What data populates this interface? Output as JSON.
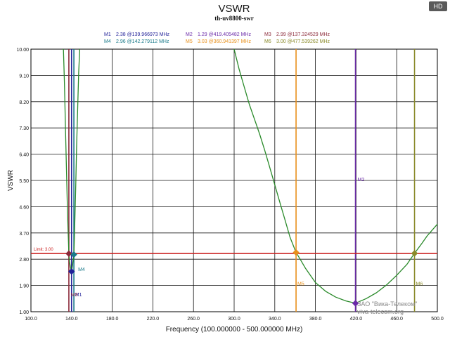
{
  "hd_badge": "HD",
  "watermark": {
    "company": "ЗАО \"Вика-Телеком\"",
    "site": "viva-telecom.org"
  },
  "chart_data": {
    "type": "line",
    "title": "VSWR",
    "subtitle": "th-uv8800-swr",
    "xlabel": "Frequency (100.000000 - 500.000000 MHz)",
    "ylabel": "VSWR",
    "xlim": [
      100,
      500
    ],
    "ylim": [
      1.0,
      10.0
    ],
    "x_ticks": [
      100,
      140,
      180,
      220,
      260,
      300,
      340,
      380,
      420,
      460,
      500
    ],
    "x_tick_labels": [
      "100.0",
      "140.0",
      "180.0",
      "220.0",
      "260.0",
      "300.0",
      "340.0",
      "380.0",
      "420.0",
      "460.0",
      "500.0"
    ],
    "y_ticks": [
      1.0,
      1.9,
      2.8,
      3.7,
      4.6,
      5.5,
      6.4,
      7.3,
      8.2,
      9.1,
      10.0
    ],
    "y_tick_labels": [
      "1.00",
      "1.90",
      "2.80",
      "3.70",
      "4.60",
      "5.50",
      "6.40",
      "7.30",
      "8.20",
      "9.10",
      "10.00"
    ],
    "grid": true,
    "limit": {
      "label": "Limit: 3.00",
      "value": 3.0,
      "color": "#cc2222"
    },
    "series": [
      {
        "name": "VSWR",
        "color": "#2a8a2a",
        "x": [
          132,
          133,
          134,
          135,
          136,
          137,
          137.3,
          138,
          139,
          139.97,
          141,
          142.28,
          143,
          144,
          145,
          146,
          147,
          148
        ],
        "y": [
          10.0,
          8.8,
          7.3,
          5.8,
          4.4,
          3.3,
          2.99,
          2.7,
          2.5,
          2.38,
          2.6,
          2.96,
          3.8,
          5.2,
          6.7,
          8.0,
          9.2,
          10.0
        ]
      },
      {
        "name": "VSWR",
        "color": "#2a8a2a",
        "x": [
          300,
          305,
          310,
          315,
          320,
          325,
          330,
          335,
          340,
          345,
          350,
          355,
          360.94,
          365,
          370,
          375,
          380,
          390,
          400,
          410,
          419.41,
          430,
          440,
          450,
          460,
          470,
          477.54,
          485,
          490,
          495,
          500
        ],
        "y": [
          10.0,
          9.3,
          8.7,
          8.1,
          7.6,
          7.1,
          6.55,
          5.95,
          5.35,
          4.75,
          4.15,
          3.55,
          3.03,
          2.8,
          2.5,
          2.25,
          2.0,
          1.7,
          1.5,
          1.37,
          1.29,
          1.45,
          1.65,
          1.92,
          2.25,
          2.62,
          3.0,
          3.35,
          3.6,
          3.8,
          4.0
        ]
      }
    ],
    "markers": [
      {
        "id": "M1",
        "value": 2.38,
        "freq": 139.966973,
        "legend": "2.38 @139.966973 MHz",
        "color": "#222299",
        "style": "diamond",
        "label_pos": "below-right"
      },
      {
        "id": "M2",
        "value": 1.29,
        "freq": 419.405482,
        "legend": "1.29 @419.405482 MHz",
        "color": "#6a2aa8",
        "style": "diamond",
        "label_pos": "middle"
      },
      {
        "id": "M3",
        "value": 2.99,
        "freq": 137.324529,
        "legend": "2.99 @137.324529 MHz",
        "color": "#8b2a3a",
        "style": "diamond",
        "label_pos": "bottom"
      },
      {
        "id": "M4",
        "value": 2.96,
        "freq": 142.279112,
        "legend": "2.96 @142.279112 MHz",
        "color": "#1a7a8a",
        "style": "diamond",
        "label_pos": "right"
      },
      {
        "id": "M5",
        "value": 3.03,
        "freq": 360.941397,
        "legend": "3.03 @360.941397 MHz",
        "color": "#e8901c",
        "style": "diamond",
        "label_pos": "below"
      },
      {
        "id": "M6",
        "value": 3.0,
        "freq": 477.539262,
        "legend": "3.00 @477.539262 MHz",
        "color": "#8a8a2a",
        "style": "diamond",
        "label_pos": "below"
      }
    ]
  }
}
